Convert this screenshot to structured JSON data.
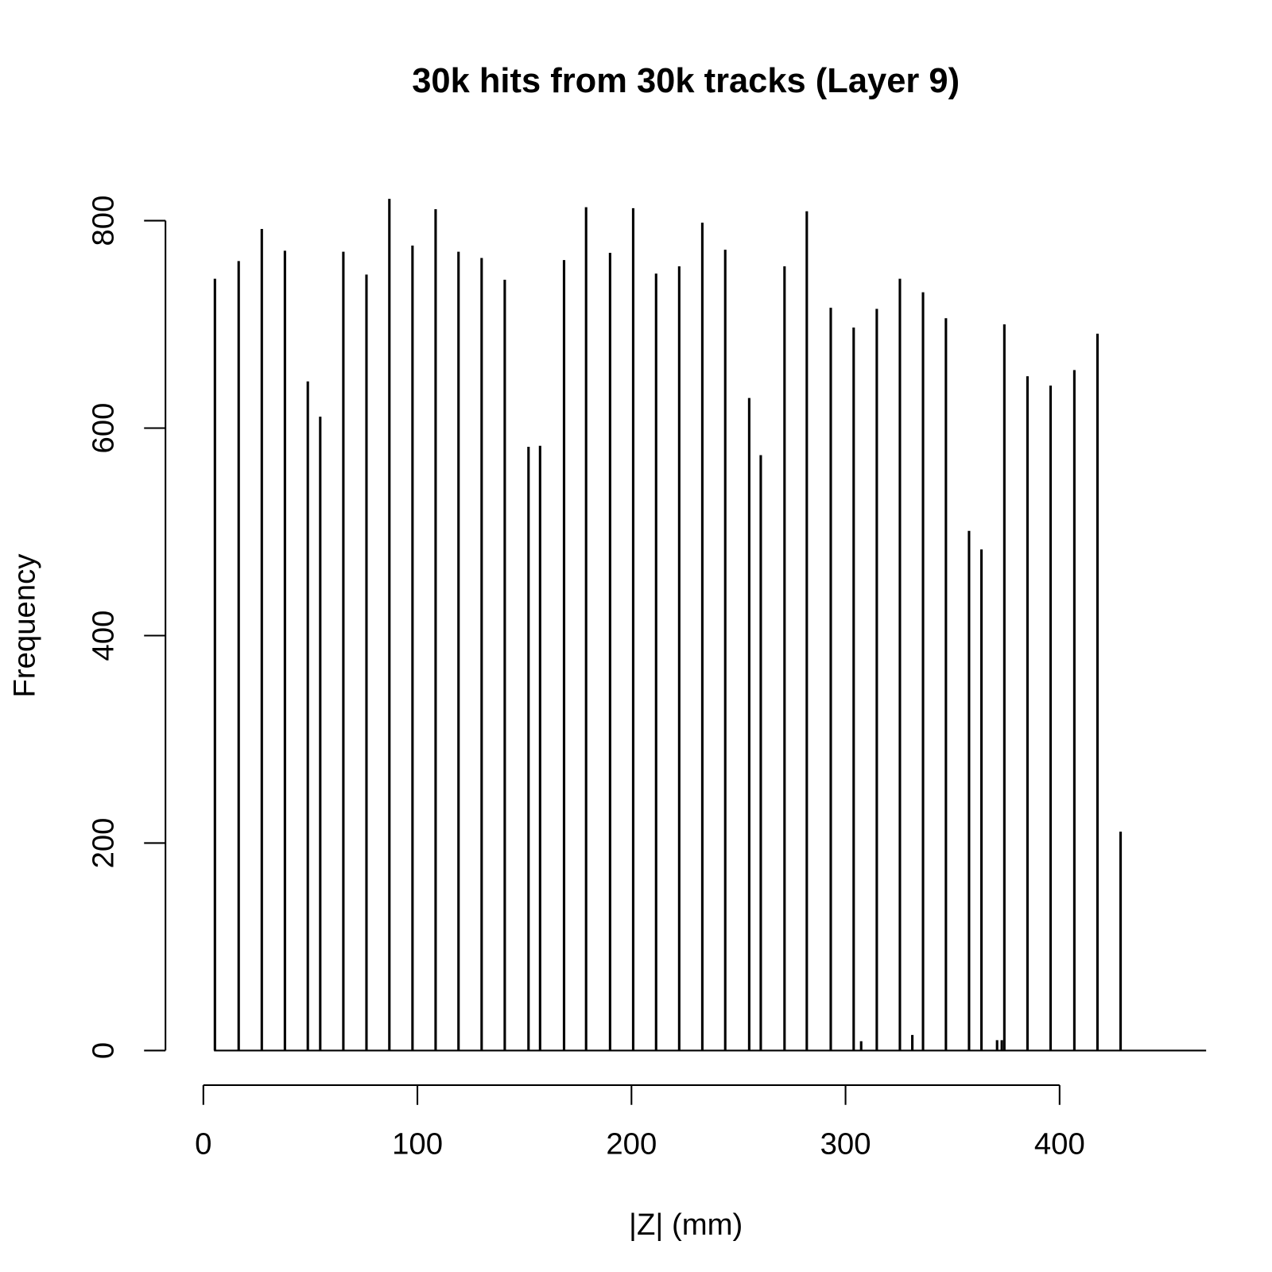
{
  "chart_data": {
    "type": "spike",
    "title": "30k hits from 30k tracks (Layer 9)",
    "x_label": "|Z| (mm)",
    "y_label": "Frequency",
    "x": [
      5.4,
      16.5,
      27.3,
      38.1,
      48.8,
      54.6,
      65.4,
      76.2,
      86.9,
      97.7,
      108.5,
      119.2,
      130,
      140.8,
      151.9,
      157.3,
      168.5,
      178.8,
      190,
      200.8,
      211.5,
      222.3,
      233.1,
      243.8,
      255,
      260.4,
      271.5,
      281.9,
      293.1,
      303.8,
      307.3,
      314.6,
      325.4,
      331.2,
      336.2,
      346.9,
      357.7,
      363.5,
      370.8,
      373,
      374.2,
      385,
      395.8,
      406.9,
      417.7,
      428.5
    ],
    "values": [
      744,
      761,
      792,
      771,
      645,
      611,
      770,
      748,
      821,
      776,
      811,
      770,
      764,
      743,
      582,
      583,
      762,
      813,
      769,
      812,
      749,
      756,
      798,
      772,
      629,
      574,
      756,
      809,
      716,
      697,
      9,
      715,
      744,
      15,
      731,
      706,
      501,
      483,
      10,
      10,
      700,
      650,
      641,
      656,
      691,
      211
    ],
    "color": "#000000",
    "xlim": [
      0,
      400
    ],
    "xticks": [
      0,
      100,
      200,
      300,
      400
    ],
    "ylim": [
      0,
      800
    ],
    "yticks": [
      0,
      200,
      400,
      600,
      800
    ]
  }
}
